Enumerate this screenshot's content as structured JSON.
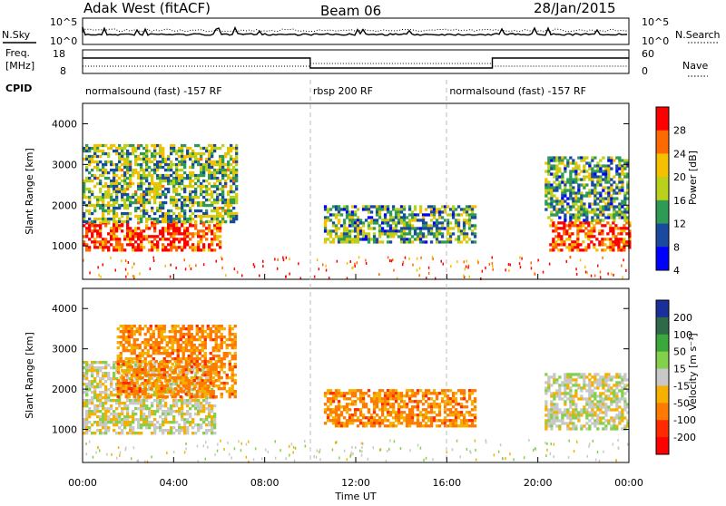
{
  "header": {
    "title": "Adak West (fitACF)",
    "beam": "Beam 06",
    "date": "28/Jan/2015"
  },
  "noise_panel": {
    "left_label": "N.Sky",
    "right_label": "N.Search",
    "left_ticks": [
      "10^5",
      "10^0"
    ],
    "right_ticks": [
      "10^5",
      "10^0"
    ]
  },
  "freq_panel": {
    "left_label_line1": "Freq.",
    "left_label_line2": "[MHz]",
    "right_label": "Nave",
    "left_ticks": [
      "18",
      "8"
    ],
    "right_ticks": [
      "60",
      "0"
    ]
  },
  "cpid": {
    "label": "CPID",
    "segments": [
      {
        "text": "normalsound (fast) -157 RF",
        "start_hour": 0,
        "end_hour": 10
      },
      {
        "text": "rbsp 200 RF",
        "start_hour": 10,
        "end_hour": 16
      },
      {
        "text": "normalsound (fast) -157 RF",
        "start_hour": 16,
        "end_hour": 24
      }
    ]
  },
  "x_axis": {
    "title": "Time UT",
    "tick_labels": [
      "00:00",
      "04:00",
      "08:00",
      "12:00",
      "16:00",
      "20:00",
      "00:00"
    ],
    "hours": [
      0,
      4,
      8,
      12,
      16,
      20,
      24
    ]
  },
  "power_panel": {
    "ylabel": "Slant Range [km]",
    "yticks": [
      1000,
      2000,
      3000,
      4000
    ],
    "colorbar_label": "Power [dB]",
    "colorbar_ticks": [
      "28",
      "24",
      "20",
      "16",
      "12",
      "8",
      "4"
    ],
    "colors": [
      "#ff0000",
      "#ff6a00",
      "#f5c000",
      "#b9d11a",
      "#2e9a55",
      "#1a4aa0",
      "#0000ff"
    ]
  },
  "velocity_panel": {
    "ylabel": "Slant Range [km]",
    "yticks": [
      1000,
      2000,
      3000,
      4000
    ],
    "colorbar_label": "Velocity [m s⁻¹]",
    "colorbar_ticks": [
      "200",
      "100",
      "50",
      "15",
      "-15",
      "-50",
      "-100",
      "-200"
    ],
    "colors": [
      "#1a2f9a",
      "#2e6a4a",
      "#3aa83a",
      "#84d04a",
      "#c8c8c8",
      "#f5b000",
      "#ff7a00",
      "#ff2a00",
      "#ff0000"
    ]
  },
  "chart_data": {
    "type": "heatmap",
    "title": "Adak West (fitACF)",
    "subtitle": "Beam 06",
    "date": "28/Jan/2015",
    "xlabel": "Time UT",
    "xlim_hours": [
      0,
      24
    ],
    "ylabel": "Slant Range [km]",
    "ylim": [
      180,
      4500
    ],
    "series": [
      {
        "name": "Power [dB]",
        "clim": [
          0,
          32
        ],
        "regions": [
          {
            "start": 0.0,
            "end": 6.0,
            "range_min": 900,
            "range_max": 1600,
            "level": 28
          },
          {
            "start": 0.0,
            "end": 6.7,
            "range_min": 1600,
            "range_max": 3500,
            "level": 14
          },
          {
            "start": 10.6,
            "end": 17.2,
            "range_min": 1100,
            "range_max": 2000,
            "level": 12
          },
          {
            "start": 20.5,
            "end": 24.0,
            "range_min": 900,
            "range_max": 1600,
            "level": 28
          },
          {
            "start": 20.3,
            "end": 24.0,
            "range_min": 1600,
            "range_max": 3200,
            "level": 12
          }
        ]
      },
      {
        "name": "Velocity [m s⁻¹]",
        "clim": [
          -250,
          250
        ],
        "regions": [
          {
            "start": 0.0,
            "end": 5.8,
            "range_min": 900,
            "range_max": 2700,
            "level": 0
          },
          {
            "start": 1.5,
            "end": 6.7,
            "range_min": 1800,
            "range_max": 3600,
            "level": -50
          },
          {
            "start": 10.6,
            "end": 17.2,
            "range_min": 1100,
            "range_max": 2000,
            "level": -50
          },
          {
            "start": 20.3,
            "end": 24.0,
            "range_min": 1000,
            "range_max": 2400,
            "level": 0
          }
        ]
      }
    ]
  }
}
